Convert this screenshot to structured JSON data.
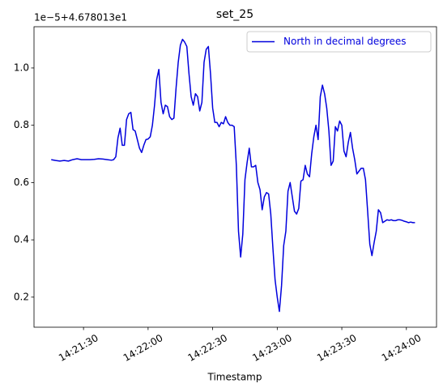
{
  "chart_data": {
    "type": "line",
    "title": "set_25",
    "x_label": "Timestamp",
    "y_offset_text": "1e−5+4.678013e1",
    "legend": "upper right",
    "grid": false,
    "x": [
      "14:21:15",
      "14:21:17",
      "14:21:19",
      "14:21:21",
      "14:21:23",
      "14:21:25",
      "14:21:27",
      "14:21:29",
      "14:21:31",
      "14:21:33",
      "14:21:35",
      "14:21:37",
      "14:21:39",
      "14:21:41",
      "14:21:43",
      "14:21:44",
      "14:21:45",
      "14:21:46",
      "14:21:47",
      "14:21:48",
      "14:21:49",
      "14:21:50",
      "14:21:51",
      "14:21:52",
      "14:21:53",
      "14:21:54",
      "14:21:55",
      "14:21:56",
      "14:21:57",
      "14:21:58",
      "14:21:59",
      "14:22:00",
      "14:22:01",
      "14:22:02",
      "14:22:03",
      "14:22:04",
      "14:22:05",
      "14:22:06",
      "14:22:07",
      "14:22:08",
      "14:22:09",
      "14:22:10",
      "14:22:11",
      "14:22:12",
      "14:22:13",
      "14:22:14",
      "14:22:15",
      "14:22:16",
      "14:22:17",
      "14:22:18",
      "14:22:19",
      "14:22:20",
      "14:22:21",
      "14:22:22",
      "14:22:23",
      "14:22:24",
      "14:22:25",
      "14:22:26",
      "14:22:27",
      "14:22:28",
      "14:22:29",
      "14:22:30",
      "14:22:31",
      "14:22:32",
      "14:22:33",
      "14:22:34",
      "14:22:35",
      "14:22:36",
      "14:22:37",
      "14:22:38",
      "14:22:39",
      "14:22:40",
      "14:22:41",
      "14:22:42",
      "14:22:43",
      "14:22:44",
      "14:22:45",
      "14:22:46",
      "14:22:47",
      "14:22:48",
      "14:22:49",
      "14:22:50",
      "14:22:51",
      "14:22:52",
      "14:22:53",
      "14:22:54",
      "14:22:55",
      "14:22:56",
      "14:22:57",
      "14:22:58",
      "14:22:59",
      "14:23:00",
      "14:23:01",
      "14:23:02",
      "14:23:03",
      "14:23:04",
      "14:23:05",
      "14:23:06",
      "14:23:07",
      "14:23:08",
      "14:23:09",
      "14:23:10",
      "14:23:11",
      "14:23:12",
      "14:23:13",
      "14:23:14",
      "14:23:15",
      "14:23:16",
      "14:23:17",
      "14:23:18",
      "14:23:19",
      "14:23:20",
      "14:23:21",
      "14:23:22",
      "14:23:23",
      "14:23:24",
      "14:23:25",
      "14:23:26",
      "14:23:27",
      "14:23:28",
      "14:23:29",
      "14:23:30",
      "14:23:31",
      "14:23:32",
      "14:23:33",
      "14:23:34",
      "14:23:35",
      "14:23:36",
      "14:23:37",
      "14:23:38",
      "14:23:39",
      "14:23:40",
      "14:23:41",
      "14:23:42",
      "14:23:43",
      "14:23:44",
      "14:23:45",
      "14:23:46",
      "14:23:47",
      "14:23:48",
      "14:23:49",
      "14:23:50",
      "14:23:51",
      "14:23:52",
      "14:23:53",
      "14:23:54",
      "14:23:55",
      "14:23:56",
      "14:23:57",
      "14:23:58",
      "14:23:59",
      "14:24:00",
      "14:24:01",
      "14:24:02",
      "14:24:03",
      "14:24:04"
    ],
    "series": [
      {
        "name": "North in decimal degrees",
        "color": "#0000dd",
        "values": [
          0.68,
          0.677,
          0.675,
          0.677,
          0.675,
          0.68,
          0.683,
          0.68,
          0.68,
          0.68,
          0.681,
          0.683,
          0.682,
          0.68,
          0.678,
          0.68,
          0.69,
          0.756,
          0.79,
          0.73,
          0.73,
          0.82,
          0.84,
          0.845,
          0.785,
          0.78,
          0.75,
          0.72,
          0.705,
          0.73,
          0.75,
          0.752,
          0.76,
          0.8,
          0.87,
          0.96,
          0.995,
          0.88,
          0.84,
          0.87,
          0.865,
          0.83,
          0.82,
          0.825,
          0.93,
          1.02,
          1.08,
          1.1,
          1.09,
          1.075,
          0.98,
          0.9,
          0.87,
          0.91,
          0.9,
          0.85,
          0.88,
          1.02,
          1.065,
          1.075,
          0.98,
          0.86,
          0.81,
          0.81,
          0.795,
          0.81,
          0.805,
          0.83,
          0.81,
          0.8,
          0.8,
          0.795,
          0.66,
          0.43,
          0.34,
          0.42,
          0.61,
          0.67,
          0.72,
          0.655,
          0.655,
          0.66,
          0.6,
          0.575,
          0.505,
          0.55,
          0.565,
          0.56,
          0.49,
          0.37,
          0.26,
          0.2,
          0.15,
          0.24,
          0.38,
          0.43,
          0.57,
          0.6,
          0.55,
          0.5,
          0.49,
          0.51,
          0.605,
          0.61,
          0.66,
          0.63,
          0.62,
          0.7,
          0.76,
          0.8,
          0.75,
          0.9,
          0.94,
          0.91,
          0.86,
          0.78,
          0.66,
          0.675,
          0.795,
          0.78,
          0.815,
          0.8,
          0.71,
          0.69,
          0.74,
          0.775,
          0.72,
          0.68,
          0.63,
          0.64,
          0.65,
          0.65,
          0.61,
          0.5,
          0.385,
          0.345,
          0.39,
          0.43,
          0.505,
          0.495,
          0.46,
          0.465,
          0.47,
          0.468,
          0.47,
          0.467,
          0.467,
          0.47,
          0.47,
          0.468,
          0.465,
          0.463,
          0.46,
          0.462,
          0.46,
          0.46
        ]
      }
    ],
    "xlim": [
      "14:21:07",
      "14:24:14"
    ],
    "xticks": [
      "14:21:30",
      "14:22:00",
      "14:22:30",
      "14:23:00",
      "14:23:30",
      "14:24:00"
    ],
    "ylim": [
      0.095,
      1.144
    ],
    "yticks": [
      0.2,
      0.4,
      0.6,
      0.8,
      {
        "value": 1.0,
        "label": "1.0"
      }
    ]
  }
}
